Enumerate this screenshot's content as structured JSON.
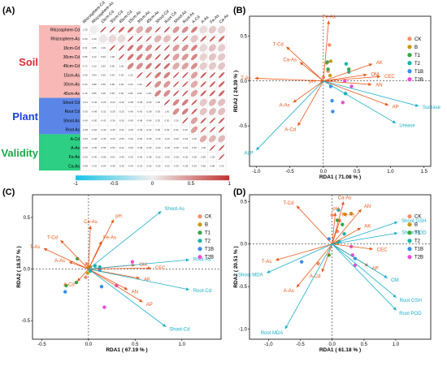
{
  "colors": {
    "arrow_soil": "#e8561a",
    "arrow_plant": "#1aaec8",
    "CK": "#f48e6b",
    "B": "#c79b16",
    "T1": "#3aa545",
    "T2": "#1ab3a8",
    "T1B": "#3b8ee8",
    "T2B": "#e84fd8"
  },
  "legend": [
    "CK",
    "B",
    "T1",
    "T2",
    "T1B",
    "T2B"
  ],
  "panelA": {
    "label": "(A)",
    "rows": [
      "Rhizosphere-Cd",
      "Rhizosphere-As",
      "15cm-Cd",
      "30cm-Cd",
      "45cm-Cd",
      "15cm-As",
      "30cm-As",
      "45cm-As",
      "Shoot Cd",
      "Root Cd",
      "Shoot As",
      "Root As",
      "A-Cd",
      "A-As",
      "Fe-As",
      "Ca-As"
    ],
    "cols": [
      "Rhizosphere-Cd",
      "Rhizosphere-As",
      "15cm-Cd",
      "30cm-Cd",
      "45cm-Cd",
      "15cm-As",
      "30cm-As",
      "45cm-As",
      "Shoot Cd",
      "Root Cd",
      "Shoot As",
      "Root As",
      "A-Cd",
      "A-As",
      "Fe-As",
      "Ca-As"
    ],
    "groups": [
      {
        "name": "Soil",
        "color": "#e0282e",
        "bg": "#f7b8b6",
        "start": 0,
        "end": 8
      },
      {
        "name": "Plant",
        "color": "#1a3fe0",
        "bg": "#5b86e8",
        "start": 8,
        "end": 12
      },
      {
        "name": "Validity",
        "color": "#18a848",
        "bg": "#2ccf84",
        "start": 12,
        "end": 16
      }
    ],
    "colorbar_ticks": [
      "-1",
      "-0.5",
      "0",
      "0.5",
      "1"
    ],
    "matrix": [
      [
        1.0,
        0.0,
        0.91,
        0.85,
        0.72,
        0.68,
        0.33,
        0.45,
        0.88,
        0.8,
        0.45,
        0.5,
        0.6,
        0.1,
        0.2,
        0.15
      ],
      [
        0.0,
        1.0,
        0.05,
        0.12,
        0.1,
        0.94,
        0.88,
        0.85,
        0.3,
        0.25,
        0.86,
        0.9,
        0.22,
        0.76,
        0.8,
        0.7
      ],
      [
        0.91,
        0.05,
        1.0,
        0.93,
        0.83,
        0.65,
        0.55,
        0.48,
        0.9,
        0.85,
        0.42,
        0.47,
        0.58,
        0.12,
        0.25,
        0.18
      ],
      [
        0.85,
        0.12,
        0.93,
        1.0,
        0.9,
        0.62,
        0.58,
        0.52,
        0.82,
        0.78,
        0.4,
        0.45,
        0.55,
        0.15,
        0.22,
        0.2
      ],
      [
        0.72,
        0.1,
        0.83,
        0.9,
        1.0,
        0.55,
        0.5,
        0.6,
        0.75,
        0.7,
        0.35,
        0.4,
        0.5,
        0.18,
        0.2,
        0.22
      ],
      [
        0.68,
        0.94,
        0.65,
        0.62,
        0.55,
        1.0,
        0.9,
        0.86,
        0.6,
        0.58,
        0.88,
        0.92,
        0.4,
        0.78,
        0.82,
        0.75
      ],
      [
        0.33,
        0.88,
        0.55,
        0.58,
        0.5,
        0.9,
        1.0,
        0.92,
        0.5,
        0.45,
        0.85,
        0.88,
        0.35,
        0.8,
        0.78,
        0.72
      ],
      [
        0.45,
        0.85,
        0.48,
        0.52,
        0.6,
        0.86,
        0.92,
        1.0,
        0.55,
        0.5,
        0.82,
        0.86,
        0.38,
        0.75,
        0.76,
        0.7
      ],
      [
        -0.21,
        -0.45,
        -0.25,
        -0.22,
        -0.2,
        -0.38,
        -0.35,
        -0.3,
        1.0,
        0.93,
        0.55,
        0.6,
        0.82,
        0.2,
        0.3,
        0.25
      ],
      [
        -0.3,
        -0.48,
        -0.32,
        -0.28,
        -0.25,
        -0.4,
        -0.42,
        -0.38,
        0.93,
        1.0,
        0.5,
        0.58,
        0.78,
        0.22,
        0.28,
        0.24
      ],
      [
        -0.4,
        -0.5,
        -0.42,
        -0.36,
        -0.3,
        -0.45,
        -0.48,
        -0.4,
        0.25,
        0.3,
        1.0,
        0.92,
        0.4,
        0.8,
        0.82,
        0.78
      ],
      [
        -0.38,
        -0.52,
        -0.4,
        -0.35,
        -0.32,
        -0.46,
        -0.45,
        -0.42,
        0.28,
        0.32,
        0.92,
        1.0,
        0.42,
        0.85,
        0.86,
        0.8
      ],
      [
        -0.52,
        -0.28,
        -0.45,
        -0.4,
        -0.35,
        -0.32,
        -0.3,
        -0.28,
        -0.15,
        -0.1,
        -0.2,
        -0.18,
        1.0,
        0.35,
        0.3,
        0.28
      ],
      [
        -0.6,
        -0.35,
        -0.55,
        -0.5,
        -0.42,
        -0.4,
        -0.38,
        -0.36,
        -0.2,
        -0.18,
        -0.25,
        -0.22,
        0.3,
        1.0,
        0.88,
        0.82
      ],
      [
        -0.62,
        -0.4,
        -0.58,
        -0.52,
        -0.45,
        -0.42,
        -0.4,
        -0.38,
        -0.22,
        -0.2,
        -0.28,
        -0.25,
        0.28,
        0.85,
        1.0,
        0.86
      ],
      [
        -0.58,
        -0.42,
        -0.54,
        -0.48,
        -0.4,
        -0.44,
        -0.42,
        -0.4,
        -0.25,
        -0.22,
        -0.3,
        -0.28,
        0.25,
        0.8,
        0.86,
        1.0
      ]
    ]
  },
  "chart_data": [
    {
      "panel": "(B)",
      "type": "scatter",
      "xlabel": "RDA1 ( 71.08 % )",
      "ylabel": "RDA2 ( 24.39 % )",
      "xlim": [
        -1.1,
        1.6
      ],
      "ylim": [
        -0.95,
        0.72
      ],
      "xticks": [
        -1.0,
        -0.5,
        0.0,
        0.5,
        1.0,
        1.5
      ],
      "yticks": [
        -0.5,
        0.0,
        0.5
      ],
      "vectors": [
        {
          "name": "Fe-As",
          "x": 0.08,
          "y": 0.67,
          "group": "soil"
        },
        {
          "name": "T-Cd",
          "x": -0.55,
          "y": 0.38,
          "group": "soil"
        },
        {
          "name": "Ca-As",
          "x": -0.35,
          "y": 0.21,
          "group": "soil"
        },
        {
          "name": "T-As",
          "x": -1.02,
          "y": 0.03,
          "group": "soil"
        },
        {
          "name": "pH",
          "x": -0.06,
          "y": 0.0,
          "group": "soil"
        },
        {
          "name": "A-As",
          "x": -0.45,
          "y": -0.24,
          "group": "soil"
        },
        {
          "name": "A-Cd",
          "x": -0.38,
          "y": -0.5,
          "group": "soil"
        },
        {
          "name": "AK",
          "x": 0.73,
          "y": 0.19,
          "group": "soil"
        },
        {
          "name": "OM",
          "x": 0.65,
          "y": 0.07,
          "group": "soil"
        },
        {
          "name": "CEC",
          "x": 0.85,
          "y": 0.05,
          "group": "soil"
        },
        {
          "name": "AN",
          "x": 0.72,
          "y": -0.04,
          "group": "soil"
        },
        {
          "name": "AP",
          "x": 0.97,
          "y": -0.27,
          "group": "soil"
        },
        {
          "name": "Sucrase",
          "x": 1.42,
          "y": -0.28,
          "group": "plant"
        },
        {
          "name": "Urease",
          "x": 1.08,
          "y": -0.47,
          "group": "plant"
        },
        {
          "name": "ALP",
          "x": -1.0,
          "y": -0.77,
          "group": "plant"
        }
      ],
      "points": [
        {
          "t": "CK",
          "x": 0.0,
          "y": 0.04
        },
        {
          "t": "CK",
          "x": 0.07,
          "y": 0.11
        },
        {
          "t": "CK",
          "x": 0.09,
          "y": 0.4
        },
        {
          "t": "B",
          "x": 0.05,
          "y": 0.2
        },
        {
          "t": "B",
          "x": 0.11,
          "y": 0.22
        },
        {
          "t": "B",
          "x": 0.1,
          "y": 0.06
        },
        {
          "t": "T1",
          "x": 0.06,
          "y": 0.21
        },
        {
          "t": "T1",
          "x": 0.07,
          "y": 0.13
        },
        {
          "t": "T1",
          "x": 0.38,
          "y": 0.13
        },
        {
          "t": "T2",
          "x": 0.34,
          "y": 0.19
        },
        {
          "t": "T2",
          "x": 0.38,
          "y": 0.1
        },
        {
          "t": "T2",
          "x": 0.33,
          "y": -0.14
        },
        {
          "t": "T1B",
          "x": 0.11,
          "y": -0.06
        },
        {
          "t": "T1B",
          "x": 0.13,
          "y": -0.22
        },
        {
          "t": "T1B",
          "x": 0.14,
          "y": -0.34
        },
        {
          "t": "T2B",
          "x": 0.32,
          "y": 0.0
        },
        {
          "t": "T2B",
          "x": 0.29,
          "y": -0.24
        },
        {
          "t": "T2B",
          "x": 0.42,
          "y": -0.06
        }
      ]
    },
    {
      "panel": "(C)",
      "type": "scatter",
      "xlabel": "RDA1 ( 67.19 % )",
      "ylabel": "RDA2 ( 18.57 % )",
      "xlim": [
        -0.6,
        1.42
      ],
      "ylim": [
        -0.68,
        0.72
      ],
      "xticks": [
        -0.5,
        0.0,
        0.5,
        1.0
      ],
      "yticks": [
        -0.5,
        0.0,
        0.5
      ],
      "vectors": [
        {
          "name": "pH",
          "x": 0.27,
          "y": 0.48,
          "group": "soil"
        },
        {
          "name": "Ca-As",
          "x": 0.02,
          "y": 0.42,
          "group": "soil"
        },
        {
          "name": "T-Cd",
          "x": -0.3,
          "y": 0.28,
          "group": "soil"
        },
        {
          "name": "Fe-As",
          "x": 0.14,
          "y": 0.27,
          "group": "soil"
        },
        {
          "name": "T-As",
          "x": -0.48,
          "y": 0.2,
          "group": "soil"
        },
        {
          "name": "A-As",
          "x": -0.21,
          "y": 0.07,
          "group": "soil"
        },
        {
          "name": "A-Cd",
          "x": -0.12,
          "y": -0.12,
          "group": "soil"
        },
        {
          "name": "OM",
          "x": 0.5,
          "y": 0.04,
          "group": "soil"
        },
        {
          "name": "CEC",
          "x": 0.67,
          "y": 0.01,
          "group": "soil"
        },
        {
          "name": "AK",
          "x": 0.55,
          "y": -0.09,
          "group": "soil"
        },
        {
          "name": "AN",
          "x": 0.42,
          "y": -0.2,
          "group": "soil"
        },
        {
          "name": "AP",
          "x": 0.58,
          "y": -0.32,
          "group": "soil"
        },
        {
          "name": "Shoot-As",
          "x": 0.78,
          "y": 0.56,
          "group": "plant"
        },
        {
          "name": "Root-As",
          "x": 1.08,
          "y": 0.09,
          "group": "plant"
        },
        {
          "name": "Root-Cd",
          "x": 1.08,
          "y": -0.2,
          "group": "plant"
        },
        {
          "name": "Shoot-Cd",
          "x": 0.83,
          "y": -0.56,
          "group": "plant"
        }
      ],
      "points": [
        {
          "t": "CK",
          "x": -0.02,
          "y": 0.05
        },
        {
          "t": "CK",
          "x": 0.0,
          "y": 0.01
        },
        {
          "t": "CK",
          "x": -0.03,
          "y": -0.08
        },
        {
          "t": "B",
          "x": 0.02,
          "y": 0.02
        },
        {
          "t": "B",
          "x": 0.0,
          "y": 0.02
        },
        {
          "t": "B",
          "x": -0.01,
          "y": -0.04
        },
        {
          "t": "T1",
          "x": -0.12,
          "y": 0.1
        },
        {
          "t": "T1",
          "x": -0.24,
          "y": -0.16
        },
        {
          "t": "T1",
          "x": -0.13,
          "y": -0.13
        },
        {
          "t": "T2",
          "x": 0.07,
          "y": 0.03
        },
        {
          "t": "T2",
          "x": 0.12,
          "y": 0.02
        },
        {
          "t": "T2",
          "x": 0.02,
          "y": -0.02
        },
        {
          "t": "T1B",
          "x": 0.12,
          "y": -0.01
        },
        {
          "t": "T1B",
          "x": 0.14,
          "y": -0.17
        },
        {
          "t": "T1B",
          "x": -0.25,
          "y": -0.22
        },
        {
          "t": "T2B",
          "x": 0.47,
          "y": 0.07
        },
        {
          "t": "T2B",
          "x": 0.3,
          "y": -0.16
        },
        {
          "t": "T2B",
          "x": 0.17,
          "y": -0.37
        }
      ]
    },
    {
      "panel": "(D)",
      "type": "scatter",
      "xlabel": "RDA1 ( 61.18 % )",
      "ylabel": "RDA2 ( 20.51 % )",
      "xlim": [
        -1.3,
        1.55
      ],
      "ylim": [
        -1.12,
        0.58
      ],
      "xticks": [
        -1.0,
        -0.5,
        0.0,
        0.5,
        1.0
      ],
      "yticks": [
        -1.0,
        -0.5,
        0.0,
        0.5
      ],
      "vectors": [
        {
          "name": "Ca-As",
          "x": 0.18,
          "y": 0.5,
          "group": "soil"
        },
        {
          "name": "T-Cd",
          "x": -0.56,
          "y": 0.45,
          "group": "soil"
        },
        {
          "name": "pH",
          "x": 0.05,
          "y": 0.37,
          "group": "soil"
        },
        {
          "name": "Fe-As",
          "x": 0.13,
          "y": 0.3,
          "group": "soil"
        },
        {
          "name": "AN",
          "x": 0.46,
          "y": 0.41,
          "group": "soil"
        },
        {
          "name": "AK",
          "x": 0.45,
          "y": 0.19,
          "group": "soil"
        },
        {
          "name": "CEC",
          "x": 0.64,
          "y": -0.06,
          "group": "soil"
        },
        {
          "name": "AP",
          "x": 0.57,
          "y": -0.26,
          "group": "soil"
        },
        {
          "name": "T-As",
          "x": -0.89,
          "y": -0.19,
          "group": "soil"
        },
        {
          "name": "A-Cd",
          "x": -0.16,
          "y": -0.33,
          "group": "soil"
        },
        {
          "name": "A-As",
          "x": -0.56,
          "y": -0.51,
          "group": "soil"
        },
        {
          "name": "Shoot GSH",
          "x": 1.03,
          "y": 0.26,
          "group": "plant"
        },
        {
          "name": "Shoot POD",
          "x": 1.03,
          "y": 0.13,
          "group": "plant"
        },
        {
          "name": "OM",
          "x": 0.87,
          "y": -0.4,
          "group": "plant"
        },
        {
          "name": "Root GSH",
          "x": 1.01,
          "y": -0.63,
          "group": "plant"
        },
        {
          "name": "Root POD",
          "x": 1.01,
          "y": -0.78,
          "group": "plant"
        },
        {
          "name": "Shoot MDA",
          "x": -1.03,
          "y": -0.34,
          "group": "plant"
        },
        {
          "name": "Root MDA",
          "x": -0.74,
          "y": -1.0,
          "group": "plant"
        }
      ],
      "points": [
        {
          "t": "CK",
          "x": 0.0,
          "y": 0.34
        },
        {
          "t": "CK",
          "x": 0.08,
          "y": 0.15
        },
        {
          "t": "CK",
          "x": -0.22,
          "y": -0.23
        },
        {
          "t": "B",
          "x": 0.2,
          "y": 0.35
        },
        {
          "t": "B",
          "x": 0.3,
          "y": 0.36
        },
        {
          "t": "B",
          "x": 0.08,
          "y": 0.02
        },
        {
          "t": "T1",
          "x": 0.08,
          "y": 0.28
        },
        {
          "t": "T1",
          "x": 0.16,
          "y": 0.23
        },
        {
          "t": "T1",
          "x": -0.05,
          "y": -0.13
        },
        {
          "t": "T2",
          "x": 0.1,
          "y": 0.4
        },
        {
          "t": "T2",
          "x": 0.19,
          "y": 0.12
        },
        {
          "t": "T2",
          "x": 0.11,
          "y": 0.03
        },
        {
          "t": "T1B",
          "x": -0.05,
          "y": 0.06
        },
        {
          "t": "T1B",
          "x": -0.48,
          "y": -0.21
        },
        {
          "t": "T1B",
          "x": 0.36,
          "y": -0.17
        },
        {
          "t": "T2B",
          "x": 0.3,
          "y": -0.03
        },
        {
          "t": "T2B",
          "x": 0.32,
          "y": -0.13
        },
        {
          "t": "T2B",
          "x": 0.36,
          "y": -0.25
        }
      ]
    }
  ]
}
